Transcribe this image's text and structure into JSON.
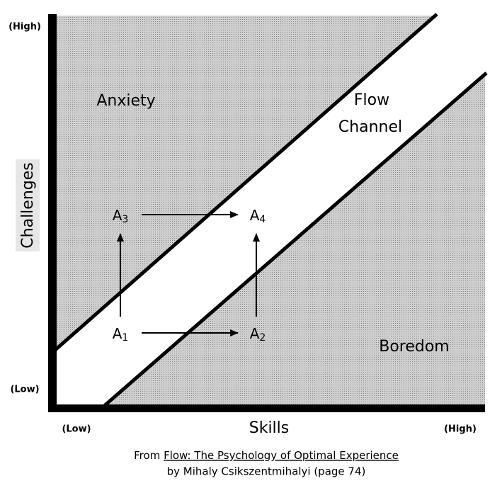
{
  "axes": {
    "y_high": "(High)",
    "y_low": "(Low)",
    "y_label": "Challenges",
    "x_low": "(Low)",
    "x_label": "Skills",
    "x_high": "(High)"
  },
  "regions": {
    "anxiety": "Anxiety",
    "flow_1": "Flow",
    "flow_2": "Channel",
    "boredom": "Boredom"
  },
  "points": [
    {
      "letter": "A",
      "sub": "1"
    },
    {
      "letter": "A",
      "sub": "2"
    },
    {
      "letter": "A",
      "sub": "3"
    },
    {
      "letter": "A",
      "sub": "4"
    }
  ],
  "caption": {
    "prefix": "From",
    "book": "Flow: The Psychology of Optimal Experience",
    "line2": "by Mihaly Csikszentmihalyi (page 74)"
  }
}
